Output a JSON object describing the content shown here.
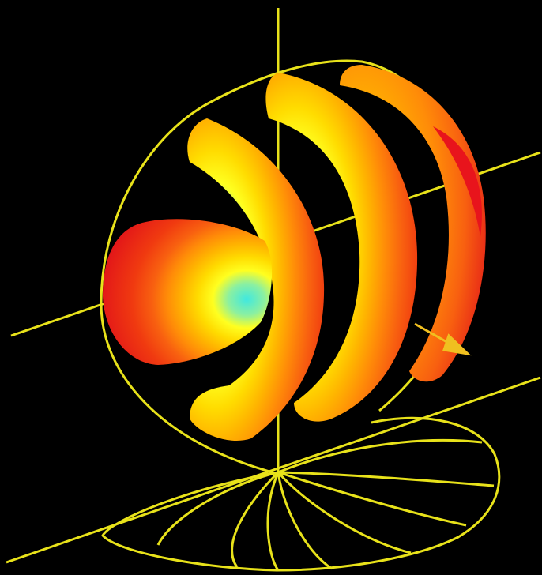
{
  "colors": {
    "background": "#000000",
    "wireframe": "#e8e21a",
    "direction_arrow": "#f0c020",
    "colormap": [
      "#e8141c",
      "#f03a10",
      "#f86010",
      "#ff8c08",
      "#ffb400",
      "#ffdc00",
      "#ffff20",
      "#c8f050",
      "#8cf0a0",
      "#40e8e0",
      "#10e0f8"
    ]
  },
  "icons": {
    "direction": "arrow-icon"
  }
}
